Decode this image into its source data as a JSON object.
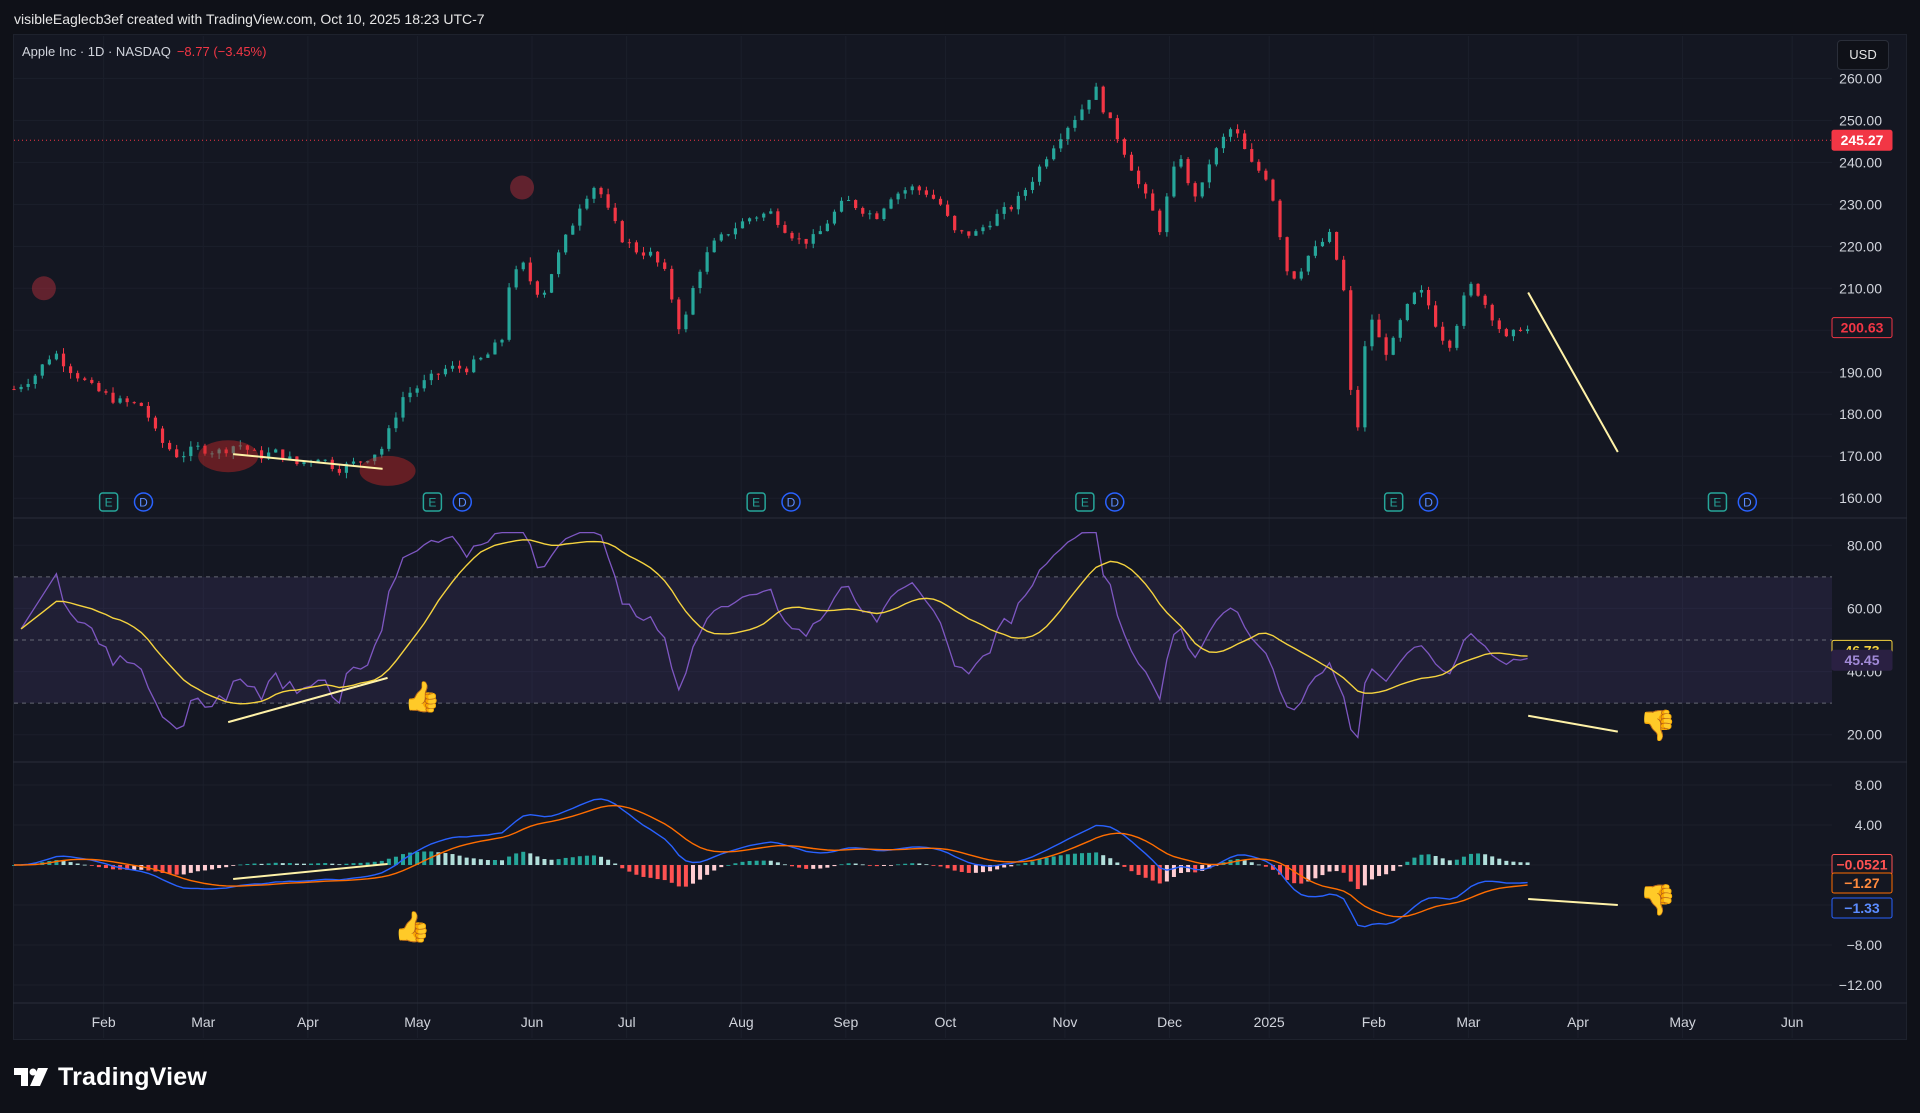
{
  "header": {
    "text": "visibleEaglecb3ef created with TradingView.com, Oct 10, 2025 18:23 UTC-7"
  },
  "symbol": {
    "name": "Apple Inc · 1D · NASDAQ",
    "change": "−8.77 (−3.45%)"
  },
  "currency_button": "USD",
  "footer": {
    "logo_text": "TradingView"
  },
  "colors": {
    "up": "#26a69a",
    "down": "#f23645",
    "rsi": "#7e57c2",
    "rsi_ma": "#f5d33f",
    "macd": "#2962ff",
    "signal": "#ff6d00",
    "hist_up_strong": "#26a69a",
    "hist_up_weak": "#b2dfdb",
    "hist_down_strong": "#ff5252",
    "hist_down_weak": "#ffcdd2",
    "annotation_line": "#fff2a8"
  },
  "chart_data": [
    {
      "type": "candlestick",
      "name": "price",
      "y_ticks": [
        "260.00",
        "250.00",
        "240.00",
        "230.00",
        "220.00",
        "210.00",
        "200.00",
        "190.00",
        "180.00",
        "170.00",
        "160.00"
      ],
      "ylim": [
        156,
        262
      ],
      "labels": {
        "current_price": "200.63",
        "price_line": "245.27"
      },
      "path": [
        [
          0,
          186
        ],
        [
          4,
          189
        ],
        [
          8,
          195
        ],
        [
          11,
          191
        ],
        [
          16,
          186
        ],
        [
          21,
          183
        ],
        [
          26,
          182
        ],
        [
          29,
          174
        ],
        [
          33,
          170
        ],
        [
          37,
          172
        ],
        [
          41,
          171
        ],
        [
          45,
          173
        ],
        [
          49,
          170
        ],
        [
          53,
          171
        ],
        [
          57,
          168
        ],
        [
          61,
          170
        ],
        [
          65,
          167
        ],
        [
          70,
          169
        ],
        [
          74,
          172
        ],
        [
          78,
          184
        ],
        [
          83,
          188
        ],
        [
          87,
          191
        ],
        [
          91,
          191
        ],
        [
          95,
          194
        ],
        [
          98,
          198
        ],
        [
          99,
          210
        ],
        [
          102,
          216
        ],
        [
          104,
          211
        ],
        [
          106,
          208
        ],
        [
          108,
          214
        ],
        [
          110,
          220
        ],
        [
          112,
          225
        ],
        [
          114,
          231
        ],
        [
          117,
          235
        ],
        [
          119,
          229
        ],
        [
          122,
          222
        ],
        [
          125,
          219
        ],
        [
          128,
          218
        ],
        [
          131,
          213
        ],
        [
          133,
          203
        ],
        [
          134,
          199
        ],
        [
          137,
          213
        ],
        [
          140,
          220
        ],
        [
          144,
          224
        ],
        [
          148,
          227
        ],
        [
          152,
          228
        ],
        [
          155,
          224
        ],
        [
          158,
          221
        ],
        [
          161,
          222
        ],
        [
          164,
          227
        ],
        [
          167,
          231
        ],
        [
          170,
          229
        ],
        [
          173,
          227
        ],
        [
          176,
          232
        ],
        [
          180,
          234
        ],
        [
          183,
          233
        ],
        [
          186,
          230
        ],
        [
          189,
          223
        ],
        [
          193,
          223
        ],
        [
          197,
          227
        ],
        [
          201,
          230
        ],
        [
          205,
          237
        ],
        [
          208,
          243
        ],
        [
          211,
          248
        ],
        [
          214,
          252
        ],
        [
          217,
          258
        ],
        [
          219,
          252
        ],
        [
          222,
          245
        ],
        [
          224,
          240
        ],
        [
          226,
          234
        ],
        [
          228,
          230
        ],
        [
          230,
          224
        ],
        [
          232,
          234
        ],
        [
          234,
          243
        ],
        [
          236,
          233
        ],
        [
          238,
          232
        ],
        [
          240,
          240
        ],
        [
          242,
          244
        ],
        [
          244,
          248
        ],
        [
          246,
          246
        ],
        [
          248,
          240
        ],
        [
          250,
          238
        ],
        [
          252,
          236
        ],
        [
          254,
          224
        ],
        [
          256,
          212
        ],
        [
          258,
          214
        ],
        [
          260,
          218
        ],
        [
          262,
          220
        ],
        [
          264,
          223
        ],
        [
          266,
          215
        ],
        [
          267,
          209
        ],
        [
          268,
          192
        ],
        [
          269,
          174
        ],
        [
          270,
          178
        ],
        [
          271,
          193
        ],
        [
          272,
          205
        ],
        [
          274,
          198
        ],
        [
          276,
          194
        ],
        [
          278,
          201
        ],
        [
          280,
          206
        ],
        [
          282,
          210
        ],
        [
          284,
          206
        ],
        [
          286,
          200
        ],
        [
          288,
          196
        ],
        [
          290,
          203
        ],
        [
          292,
          211
        ],
        [
          294,
          209
        ],
        [
          296,
          205
        ],
        [
          298,
          201
        ],
        [
          300,
          197
        ],
        [
          302,
          201
        ],
        [
          304,
          200
        ]
      ],
      "events": [
        {
          "label": "E",
          "x": 19
        },
        {
          "label": "D",
          "x": 26
        },
        {
          "label": "E",
          "x": 84
        },
        {
          "label": "D",
          "x": 90
        },
        {
          "label": "E",
          "x": 149
        },
        {
          "label": "D",
          "x": 156
        },
        {
          "label": "E",
          "x": 215
        },
        {
          "label": "D",
          "x": 221
        },
        {
          "label": "E",
          "x": 277
        },
        {
          "label": "D",
          "x": 284
        },
        {
          "label": "E",
          "x": 342
        },
        {
          "label": "D",
          "x": 348
        }
      ],
      "annotations": [
        {
          "type": "trendline",
          "from": [
            44,
            170.5
          ],
          "to": [
            74,
            167
          ]
        },
        {
          "type": "trendline",
          "from": [
            304,
            209
          ],
          "to": [
            322,
            171
          ]
        }
      ],
      "note_markers": [
        {
          "x": 6,
          "y": 210
        },
        {
          "x": 102,
          "y": 234
        }
      ]
    },
    {
      "type": "line",
      "name": "rsi",
      "y_ticks": [
        "80.00",
        "60.00",
        "40.00",
        "20.00"
      ],
      "ylim": [
        12,
        88
      ],
      "bands": {
        "upper": 70,
        "middle": 50,
        "lower": 30
      },
      "labels": {
        "rsi_ma": "46.73",
        "rsi": "45.45"
      },
      "annotations": [
        {
          "type": "trendline",
          "from": [
            43,
            24
          ],
          "to": [
            75,
            38
          ]
        },
        {
          "type": "trendline",
          "from": [
            304,
            26
          ],
          "to": [
            322,
            21
          ]
        }
      ],
      "thumbs": [
        {
          "kind": "up",
          "x": 82,
          "y": 32
        },
        {
          "kind": "down",
          "x": 330,
          "y": 23
        }
      ]
    },
    {
      "type": "line",
      "name": "macd",
      "y_ticks": [
        "8.00",
        "4.00",
        "−8.00",
        "−12.00"
      ],
      "hidden_ticks": [
        0,
        -4
      ],
      "ylim": [
        -13.5,
        10
      ],
      "labels": {
        "histogram": "−0.0521",
        "signal": "−1.27",
        "macd": "−1.33"
      },
      "annotations": [
        {
          "type": "trendline",
          "from": [
            44,
            -1.4
          ],
          "to": [
            75,
            0.1
          ]
        },
        {
          "type": "trendline",
          "from": [
            304,
            -3.4
          ],
          "to": [
            322,
            -4.0
          ]
        }
      ],
      "thumbs": [
        {
          "kind": "up",
          "x": 80,
          "y": -6.2
        },
        {
          "kind": "down",
          "x": 330,
          "y": -3.5
        }
      ]
    }
  ],
  "x_axis": {
    "ticks": [
      {
        "label": "Feb",
        "x": 18
      },
      {
        "label": "Mar",
        "x": 38
      },
      {
        "label": "Apr",
        "x": 59
      },
      {
        "label": "May",
        "x": 81
      },
      {
        "label": "Jun",
        "x": 104
      },
      {
        "label": "Jul",
        "x": 123
      },
      {
        "label": "Aug",
        "x": 146
      },
      {
        "label": "Sep",
        "x": 167
      },
      {
        "label": "Oct",
        "x": 187
      },
      {
        "label": "Nov",
        "x": 211
      },
      {
        "label": "Dec",
        "x": 232
      },
      {
        "label": "2025",
        "x": 252
      },
      {
        "label": "Feb",
        "x": 273
      },
      {
        "label": "Mar",
        "x": 292
      },
      {
        "label": "Apr",
        "x": 314
      },
      {
        "label": "May",
        "x": 335
      },
      {
        "label": "Jun",
        "x": 357
      }
    ],
    "xlim": [
      0,
      365
    ]
  }
}
